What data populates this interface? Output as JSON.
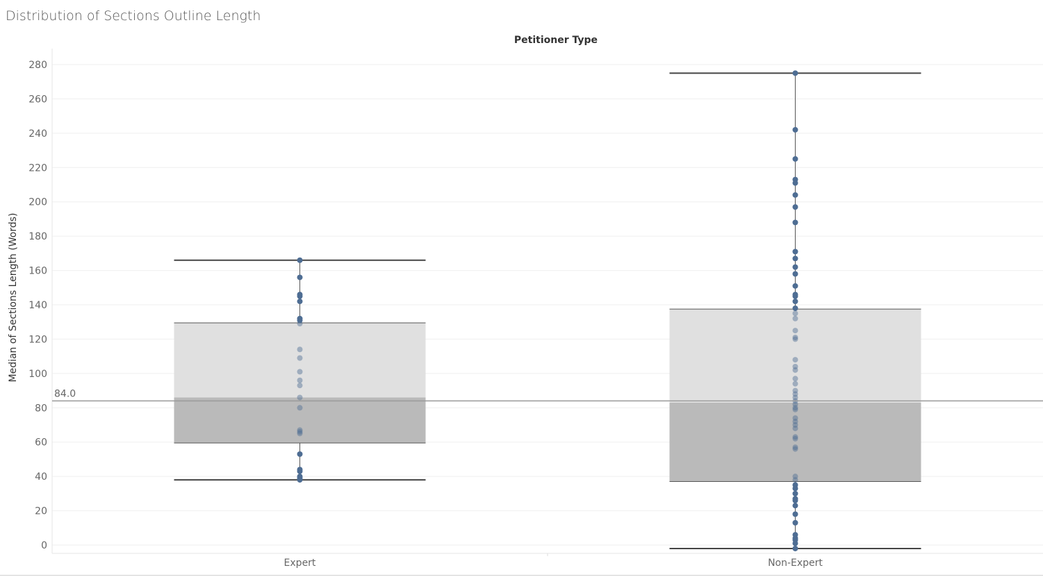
{
  "title": "Distribution of Sections Outline Length",
  "chart_data": {
    "type": "box",
    "title": "Distribution of Sections Outline Length",
    "column_header": "Petitioner Type",
    "ylabel": "Median of Sections Length (Words)",
    "xlabel": "",
    "ylim": [
      -4,
      290
    ],
    "yticks": [
      0,
      20,
      40,
      60,
      80,
      100,
      120,
      140,
      160,
      180,
      200,
      220,
      240,
      260,
      280
    ],
    "grid": true,
    "reference_line": {
      "value": 84,
      "label": "84.0"
    },
    "categories": [
      "Expert",
      "Non-Expert"
    ],
    "boxes": [
      {
        "category": "Expert",
        "whisker_low": 38,
        "q1": 59.5,
        "median": 86,
        "q3": 129.5,
        "whisker_high": 166,
        "points": [
          166,
          156,
          146,
          145,
          142,
          132,
          131,
          129,
          114,
          109,
          101,
          96,
          93,
          86,
          80,
          67,
          66,
          65,
          53,
          44,
          43,
          40,
          39,
          38
        ]
      },
      {
        "category": "Non-Expert",
        "whisker_low": -2,
        "q1": 37,
        "median": 83,
        "q3": 137.5,
        "whisker_high": 275,
        "points": [
          275,
          242,
          225,
          213,
          211,
          204,
          197,
          188,
          171,
          167,
          162,
          158,
          151,
          146,
          145,
          142,
          138,
          135,
          132,
          125,
          121,
          120,
          108,
          104,
          102,
          97,
          94,
          90,
          88,
          86,
          84,
          82,
          80,
          79,
          74,
          72,
          70,
          68,
          63,
          62,
          57,
          56,
          40,
          38,
          35,
          33,
          30,
          27,
          26,
          23,
          18,
          13,
          6,
          4,
          3,
          1,
          -2
        ]
      }
    ]
  }
}
